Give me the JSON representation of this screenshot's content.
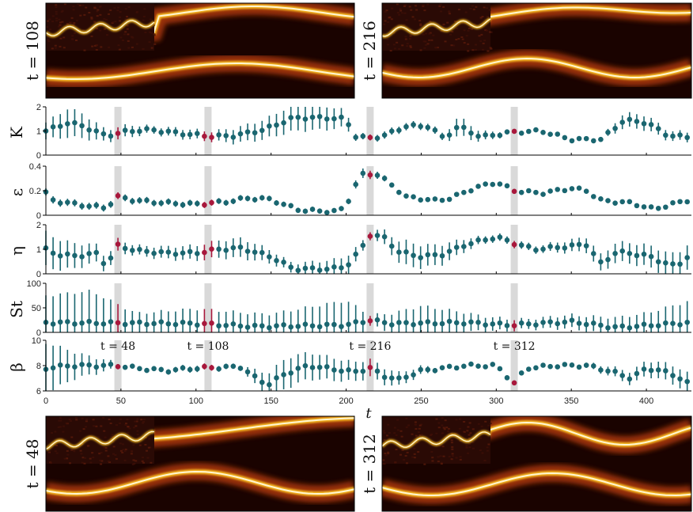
{
  "colors": {
    "point": "#1a6670",
    "highlight": "#a8183c",
    "band": "#d9d9d9",
    "axis": "#000000"
  },
  "chart_data": {
    "type": "scatter",
    "x_range": [
      0,
      430
    ],
    "xlabel": "t",
    "x_ticks": [
      "0",
      "50",
      "100",
      "150",
      "200",
      "250",
      "300",
      "350",
      "400"
    ],
    "highlight_times": [
      48,
      108,
      216,
      312
    ],
    "time_labels": [
      "t = 48",
      "t = 108",
      "t = 216",
      "t = 312"
    ],
    "panel_labels": [
      "t = 108",
      "t = 216",
      "t = 48",
      "t = 312"
    ],
    "panels": [
      {
        "name": "K",
        "ylabel": "K",
        "ylim": [
          0,
          2
        ],
        "yticks": [
          "0",
          "1",
          "2"
        ],
        "knots": [
          [
            0,
            1.0
          ],
          [
            15,
            1.35
          ],
          [
            25,
            1.2
          ],
          [
            40,
            0.8
          ],
          [
            55,
            1.0
          ],
          [
            70,
            1.05
          ],
          [
            90,
            0.9
          ],
          [
            110,
            0.78
          ],
          [
            125,
            0.8
          ],
          [
            145,
            1.05
          ],
          [
            165,
            1.55
          ],
          [
            185,
            1.55
          ],
          [
            200,
            1.5
          ],
          [
            205,
            0.8
          ],
          [
            215,
            0.7
          ],
          [
            225,
            0.8
          ],
          [
            240,
            1.2
          ],
          [
            255,
            1.2
          ],
          [
            265,
            0.7
          ],
          [
            275,
            1.2
          ],
          [
            290,
            0.75
          ],
          [
            310,
            0.95
          ],
          [
            330,
            1.0
          ],
          [
            350,
            0.65
          ],
          [
            370,
            0.65
          ],
          [
            385,
            1.45
          ],
          [
            400,
            1.35
          ],
          [
            415,
            0.8
          ],
          [
            430,
            0.75
          ]
        ],
        "err_knots": [
          [
            0,
            0.35
          ],
          [
            15,
            0.6
          ],
          [
            25,
            0.5
          ],
          [
            40,
            0.25
          ],
          [
            55,
            0.25
          ],
          [
            70,
            0.15
          ],
          [
            90,
            0.2
          ],
          [
            110,
            0.2
          ],
          [
            125,
            0.3
          ],
          [
            145,
            0.4
          ],
          [
            165,
            0.55
          ],
          [
            185,
            0.5
          ],
          [
            200,
            0.35
          ],
          [
            205,
            0.15
          ],
          [
            215,
            0.12
          ],
          [
            225,
            0.15
          ],
          [
            240,
            0.15
          ],
          [
            255,
            0.15
          ],
          [
            265,
            0.15
          ],
          [
            275,
            0.4
          ],
          [
            290,
            0.2
          ],
          [
            310,
            0.08
          ],
          [
            330,
            0.08
          ],
          [
            350,
            0.06
          ],
          [
            370,
            0.08
          ],
          [
            385,
            0.3
          ],
          [
            400,
            0.3
          ],
          [
            415,
            0.2
          ],
          [
            430,
            0.2
          ]
        ]
      },
      {
        "name": "epsilon",
        "ylabel": "ε",
        "ylim": [
          0,
          0.4
        ],
        "yticks": [
          "0",
          "0.2",
          "0.4"
        ],
        "knots": [
          [
            0,
            0.18
          ],
          [
            5,
            0.12
          ],
          [
            20,
            0.09
          ],
          [
            40,
            0.06
          ],
          [
            45,
            0.12
          ],
          [
            48,
            0.15
          ],
          [
            60,
            0.12
          ],
          [
            80,
            0.1
          ],
          [
            100,
            0.09
          ],
          [
            120,
            0.11
          ],
          [
            135,
            0.14
          ],
          [
            150,
            0.13
          ],
          [
            160,
            0.08
          ],
          [
            170,
            0.04
          ],
          [
            195,
            0.03
          ],
          [
            200,
            0.08
          ],
          [
            205,
            0.22
          ],
          [
            210,
            0.33
          ],
          [
            220,
            0.34
          ],
          [
            230,
            0.25
          ],
          [
            240,
            0.15
          ],
          [
            260,
            0.12
          ],
          [
            270,
            0.14
          ],
          [
            285,
            0.22
          ],
          [
            300,
            0.27
          ],
          [
            312,
            0.2
          ],
          [
            330,
            0.18
          ],
          [
            350,
            0.22
          ],
          [
            360,
            0.2
          ],
          [
            370,
            0.12
          ],
          [
            390,
            0.1
          ],
          [
            405,
            0.05
          ],
          [
            420,
            0.1
          ],
          [
            430,
            0.13
          ]
        ],
        "err_knots": [
          [
            0,
            0.03
          ],
          [
            200,
            0.02
          ],
          [
            210,
            0.04
          ],
          [
            230,
            0.02
          ],
          [
            430,
            0.01
          ]
        ]
      },
      {
        "name": "eta",
        "ylabel": "η",
        "ylim": [
          0,
          2
        ],
        "yticks": [
          "0",
          "1",
          "2"
        ],
        "knots": [
          [
            0,
            1.0
          ],
          [
            10,
            0.75
          ],
          [
            25,
            0.75
          ],
          [
            35,
            0.85
          ],
          [
            40,
            0.3
          ],
          [
            48,
            1.15
          ],
          [
            60,
            0.95
          ],
          [
            80,
            0.85
          ],
          [
            100,
            0.85
          ],
          [
            115,
            1.0
          ],
          [
            130,
            1.05
          ],
          [
            150,
            0.7
          ],
          [
            165,
            0.2
          ],
          [
            190,
            0.2
          ],
          [
            200,
            0.3
          ],
          [
            210,
            1.0
          ],
          [
            215,
            1.6
          ],
          [
            225,
            1.5
          ],
          [
            235,
            0.9
          ],
          [
            250,
            0.7
          ],
          [
            265,
            0.8
          ],
          [
            280,
            1.2
          ],
          [
            300,
            1.5
          ],
          [
            312,
            1.25
          ],
          [
            325,
            1.0
          ],
          [
            345,
            1.1
          ],
          [
            360,
            1.2
          ],
          [
            370,
            0.4
          ],
          [
            380,
            0.9
          ],
          [
            400,
            0.75
          ],
          [
            410,
            0.5
          ],
          [
            420,
            0.3
          ],
          [
            430,
            0.85
          ]
        ],
        "err_knots": [
          [
            0,
            0.7
          ],
          [
            20,
            0.5
          ],
          [
            40,
            0.3
          ],
          [
            60,
            0.2
          ],
          [
            100,
            0.3
          ],
          [
            130,
            0.4
          ],
          [
            160,
            0.2
          ],
          [
            200,
            0.4
          ],
          [
            215,
            0.15
          ],
          [
            240,
            0.5
          ],
          [
            265,
            0.4
          ],
          [
            290,
            0.15
          ],
          [
            330,
            0.15
          ],
          [
            380,
            0.4
          ],
          [
            430,
            0.5
          ]
        ]
      },
      {
        "name": "St",
        "ylabel": "St",
        "ylim": [
          0,
          100
        ],
        "yticks": [
          "0",
          "50",
          "100"
        ],
        "knots": [
          [
            0,
            20
          ],
          [
            100,
            18
          ],
          [
            140,
            12
          ],
          [
            200,
            15
          ],
          [
            216,
            25
          ],
          [
            230,
            18
          ],
          [
            280,
            20
          ],
          [
            310,
            15
          ],
          [
            350,
            22
          ],
          [
            380,
            10
          ],
          [
            430,
            20
          ]
        ],
        "err_knots": [
          [
            0,
            55
          ],
          [
            30,
            65
          ],
          [
            60,
            20
          ],
          [
            100,
            30
          ],
          [
            150,
            25
          ],
          [
            200,
            50
          ],
          [
            216,
            10
          ],
          [
            250,
            35
          ],
          [
            290,
            15
          ],
          [
            320,
            10
          ],
          [
            360,
            15
          ],
          [
            400,
            25
          ],
          [
            430,
            45
          ]
        ]
      },
      {
        "name": "beta",
        "ylabel": "β",
        "ylim": [
          6,
          10
        ],
        "yticks": [
          "6",
          "8",
          "10"
        ],
        "knots": [
          [
            0,
            7.8
          ],
          [
            15,
            8.0
          ],
          [
            48,
            8.0
          ],
          [
            60,
            7.8
          ],
          [
            80,
            7.6
          ],
          [
            100,
            7.8
          ],
          [
            130,
            7.9
          ],
          [
            140,
            7.0
          ],
          [
            148,
            6.5
          ],
          [
            160,
            7.4
          ],
          [
            175,
            8.0
          ],
          [
            205,
            7.5
          ],
          [
            216,
            7.8
          ],
          [
            225,
            7.2
          ],
          [
            235,
            6.9
          ],
          [
            250,
            7.6
          ],
          [
            280,
            8.0
          ],
          [
            300,
            8.0
          ],
          [
            312,
            6.6
          ],
          [
            320,
            7.8
          ],
          [
            340,
            8.0
          ],
          [
            360,
            8.0
          ],
          [
            375,
            7.6
          ],
          [
            390,
            7.0
          ],
          [
            400,
            7.8
          ],
          [
            410,
            7.6
          ],
          [
            420,
            7.2
          ],
          [
            430,
            6.4
          ]
        ],
        "err_knots": [
          [
            0,
            2.0
          ],
          [
            20,
            1.0
          ],
          [
            50,
            0.15
          ],
          [
            100,
            0.25
          ],
          [
            130,
            0.2
          ],
          [
            145,
            0.8
          ],
          [
            160,
            1.2
          ],
          [
            200,
            0.8
          ],
          [
            230,
            0.6
          ],
          [
            260,
            0.2
          ],
          [
            300,
            0.15
          ],
          [
            320,
            0.15
          ],
          [
            360,
            0.2
          ],
          [
            400,
            0.6
          ],
          [
            430,
            0.8
          ]
        ]
      }
    ]
  }
}
